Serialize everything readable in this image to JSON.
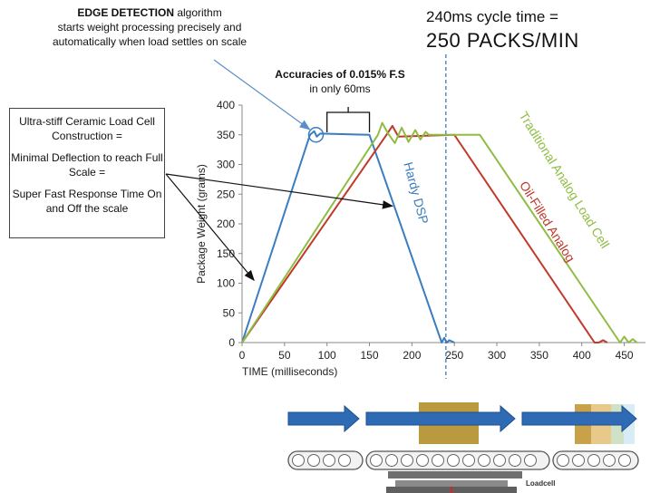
{
  "annotations": {
    "edge_bold": "EDGE DETECTION",
    "edge_rest": " algorithm",
    "edge_line2": "starts weight processing precisely and",
    "edge_line3": "automatically when load settles on scale",
    "acc_prefix": "Accuracies of ",
    "acc_value": " 0.015% F.S",
    "acc_line2": "in only 60ms",
    "cycle_line1": "240ms cycle time =",
    "cycle_line2": "250 PACKS/MIN",
    "ceramic_1": "Ultra-stiff Ceramic Load Cell Construction =",
    "ceramic_2": "Minimal Deflection to reach Full Scale =",
    "ceramic_3": "Super Fast Response Time On and Off the scale",
    "loadcell_label": "Loadcell"
  },
  "colors": {
    "hardy": "#3b7dbf",
    "oil": "#c0392b",
    "traditional": "#8fbd44",
    "axis": "#888888",
    "arrow": "#2f5f9f",
    "cycle_marker": "#2f6fb5",
    "belt": "#555555"
  },
  "chart_data": {
    "type": "line",
    "xlabel": "TIME (milliseconds)",
    "ylabel": "Package Weight (grams)",
    "xlim": [
      0,
      475
    ],
    "ylim": [
      0,
      400
    ],
    "xticks": [
      0,
      50,
      100,
      150,
      200,
      250,
      300,
      350,
      400,
      450
    ],
    "yticks": [
      0,
      50,
      100,
      150,
      200,
      250,
      300,
      350,
      400
    ],
    "cycle_marker_x": 240,
    "series": [
      {
        "name": "Hardy DSP",
        "color": "#3b7dbf",
        "points": [
          [
            0,
            0
          ],
          [
            80,
            350
          ],
          [
            85,
            356
          ],
          [
            88,
            347
          ],
          [
            92,
            352
          ],
          [
            150,
            350
          ],
          [
            235,
            0
          ],
          [
            238,
            8
          ],
          [
            241,
            0
          ],
          [
            244,
            4
          ],
          [
            250,
            0
          ]
        ]
      },
      {
        "name": "Oil-Filled Analog",
        "color": "#c0392b",
        "points": [
          [
            0,
            0
          ],
          [
            170,
            350
          ],
          [
            177,
            365
          ],
          [
            184,
            347
          ],
          [
            250,
            350
          ],
          [
            415,
            0
          ],
          [
            420,
            0
          ],
          [
            425,
            4
          ],
          [
            430,
            0
          ]
        ]
      },
      {
        "name": "Traditional Analog Load Cell",
        "color": "#8fbd44",
        "points": [
          [
            0,
            0
          ],
          [
            160,
            350
          ],
          [
            165,
            370
          ],
          [
            172,
            352
          ],
          [
            180,
            336
          ],
          [
            188,
            362
          ],
          [
            196,
            338
          ],
          [
            204,
            358
          ],
          [
            210,
            342
          ],
          [
            216,
            355
          ],
          [
            220,
            350
          ],
          [
            280,
            350
          ],
          [
            445,
            0
          ],
          [
            450,
            10
          ],
          [
            455,
            0
          ],
          [
            460,
            6
          ],
          [
            465,
            0
          ]
        ]
      }
    ],
    "series_labels": [
      {
        "text": "Hardy DSP",
        "x": 200,
        "y": 250,
        "angle": 75
      },
      {
        "text": "Oil-Filled Analog",
        "x": 355,
        "y": 200,
        "angle": 58
      },
      {
        "text": "Traditional Analog Load Cell",
        "x": 375,
        "y": 270,
        "angle": 58
      }
    ]
  }
}
